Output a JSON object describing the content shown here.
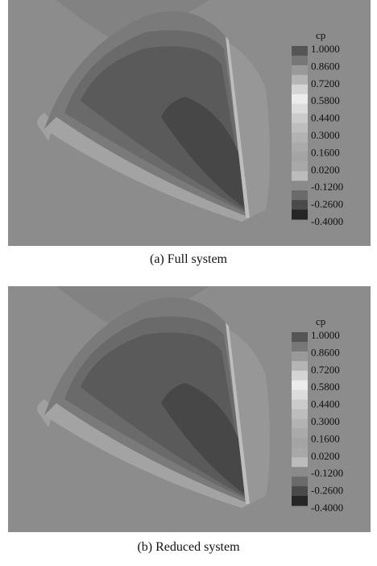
{
  "panels": [
    {
      "legend_title": "cp",
      "legend_labels": [
        "1.0000",
        "0.8600",
        "0.7200",
        "0.5800",
        "0.4400",
        "0.3000",
        "0.1600",
        "0.0200",
        "-0.1200",
        "-0.2600",
        "-0.4000"
      ],
      "caption": "(a) Full system"
    },
    {
      "legend_title": "cp",
      "legend_labels": [
        "1.0000",
        "0.8600",
        "0.7200",
        "0.5800",
        "0.4400",
        "0.3000",
        "0.1600",
        "0.0200",
        "-0.1200",
        "-0.2600",
        "-0.4000"
      ],
      "caption": "(b) Reduced system"
    }
  ]
}
